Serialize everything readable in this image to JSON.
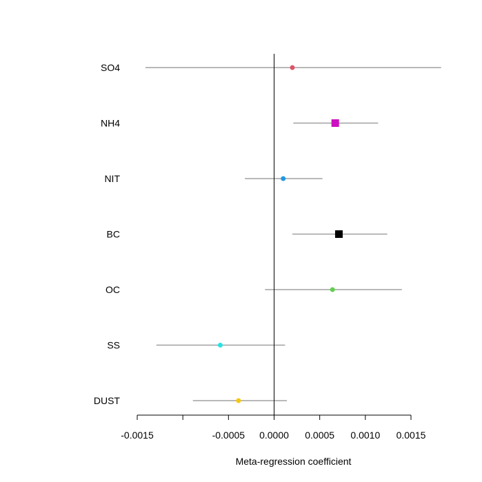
{
  "chart_data": {
    "type": "scatter",
    "subtype": "forest-plot",
    "xlabel": "Meta-regression coefficient",
    "xlim": [
      -0.0015,
      0.0015
    ],
    "x_ticks": [
      -0.0015,
      -0.001,
      -0.0005,
      0.0,
      0.0005,
      0.001,
      0.0015
    ],
    "x_tick_labels": [
      "-0.0015",
      "",
      "-0.0005",
      "0.0000",
      "0.0005",
      "0.0010",
      "0.0015"
    ],
    "reference_line": 0,
    "grid": false,
    "items": [
      {
        "label": "SO4",
        "estimate": 0.0002,
        "lower": -0.00141,
        "upper": 0.00183,
        "color": "#DF536B",
        "marker": "circle"
      },
      {
        "label": "NH4",
        "estimate": 0.00067,
        "lower": 0.00021,
        "upper": 0.00114,
        "color": "#CC0FC0",
        "marker": "square"
      },
      {
        "label": "NIT",
        "estimate": 0.0001,
        "lower": -0.00032,
        "upper": 0.00053,
        "color": "#2297E6",
        "marker": "circle"
      },
      {
        "label": "BC",
        "estimate": 0.00071,
        "lower": 0.0002,
        "upper": 0.00124,
        "color": "#000000",
        "marker": "square"
      },
      {
        "label": "OC",
        "estimate": 0.00064,
        "lower": -0.0001,
        "upper": 0.0014,
        "color": "#61D04F",
        "marker": "circle"
      },
      {
        "label": "SS",
        "estimate": -0.00059,
        "lower": -0.00129,
        "upper": 0.00012,
        "color": "#28E2E5",
        "marker": "circle"
      },
      {
        "label": "DUST",
        "estimate": -0.00039,
        "lower": -0.00089,
        "upper": 0.00014,
        "color": "#F5C710",
        "marker": "circle"
      }
    ],
    "ci_line_color": "#A0A0A0"
  }
}
